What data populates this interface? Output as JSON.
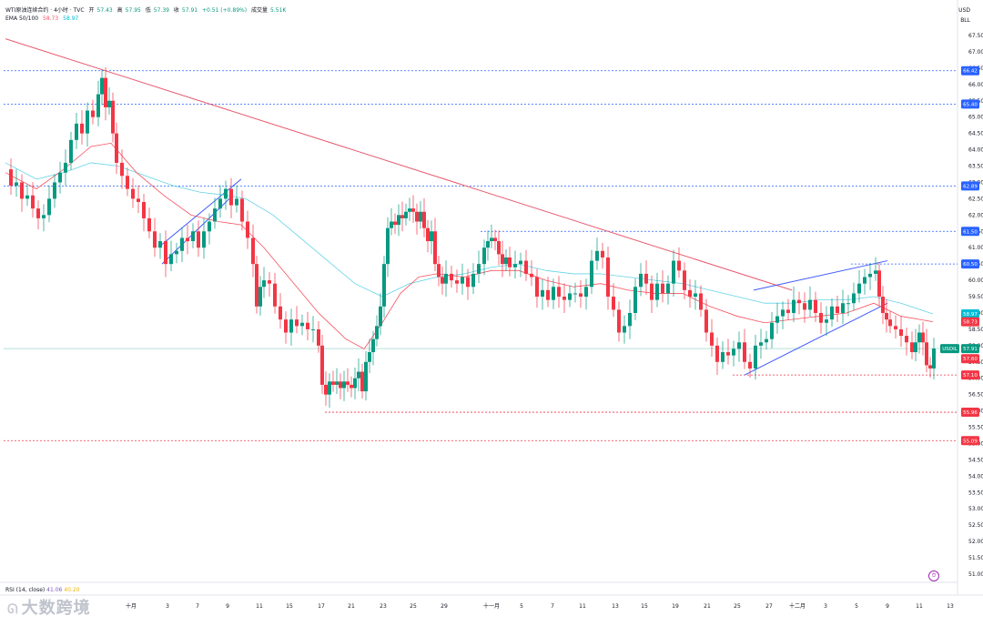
{
  "header": {
    "symbol": "WTI原油连续合约 · 4小时 · TVC",
    "ohlc": [
      {
        "label": "开",
        "value": "57.43"
      },
      {
        "label": "高",
        "value": "57.95"
      },
      {
        "label": "低",
        "value": "57.39"
      },
      {
        "label": "收",
        "value": "57.91"
      },
      {
        "label": "",
        "value": "+0.51 (+0.89%)"
      },
      {
        "label": "成交量",
        "value": "5.51K"
      }
    ],
    "ema_title": "EMA 50/100",
    "ema_a": "58.73",
    "ema_b": "58.97"
  },
  "rsi": {
    "title": "RSI (14, close)",
    "value_a": "41.06",
    "value_b": "40.20"
  },
  "currency": {
    "code": "USD",
    "unit": "BLL"
  },
  "watermark": "大数跨境",
  "alert_icon": "alarm-icon",
  "colors": {
    "up": "#089981",
    "down": "#f23645",
    "ema_red": "#f7525f",
    "ema_cyan": "#63d3e6",
    "trend_red": "#e85a6e",
    "channel_blue": "#3d5afe",
    "level_blue": "#2962ff",
    "level_red": "#f23645",
    "price_line": "#089981",
    "grid": "#f0f3fa"
  },
  "chart_data": {
    "type": "candlestick",
    "title": "WTI原油连续合约 · 4小时 · TVC",
    "ylim": [
      50.5,
      67.9
    ],
    "y_ticks": [
      "67.50",
      "67.00",
      "66.50",
      "66.00",
      "65.50",
      "65.00",
      "64.50",
      "64.00",
      "63.50",
      "63.00",
      "62.50",
      "62.00",
      "61.50",
      "61.00",
      "60.50",
      "60.00",
      "59.50",
      "59.00",
      "58.50",
      "58.00",
      "57.50",
      "57.00",
      "56.50",
      "56.00",
      "55.50",
      "55.00",
      "54.50",
      "54.00",
      "53.50",
      "53.00",
      "52.50",
      "52.00",
      "51.50",
      "51.00"
    ],
    "x_ticks": [
      {
        "label": "十月",
        "t": 144
      },
      {
        "label": "3",
        "t": 184
      },
      {
        "label": "7",
        "t": 217
      },
      {
        "label": "9",
        "t": 250
      },
      {
        "label": "11",
        "t": 285
      },
      {
        "label": "15",
        "t": 318
      },
      {
        "label": "17",
        "t": 353
      },
      {
        "label": "21",
        "t": 386
      },
      {
        "label": "23",
        "t": 421
      },
      {
        "label": "25",
        "t": 454
      },
      {
        "label": "29",
        "t": 488
      },
      {
        "label": "十一月",
        "t": 540
      },
      {
        "label": "5",
        "t": 573
      },
      {
        "label": "7",
        "t": 607
      },
      {
        "label": "11",
        "t": 640
      },
      {
        "label": "13",
        "t": 676
      },
      {
        "label": "15",
        "t": 708
      },
      {
        "label": "19",
        "t": 742
      },
      {
        "label": "21",
        "t": 777
      },
      {
        "label": "25",
        "t": 810
      },
      {
        "label": "27",
        "t": 845
      },
      {
        "label": "十二月",
        "t": 876
      },
      {
        "label": "3",
        "t": 907
      },
      {
        "label": "5",
        "t": 941
      },
      {
        "label": "9",
        "t": 975
      },
      {
        "label": "11",
        "t": 1010
      },
      {
        "label": "13",
        "t": 1044
      }
    ],
    "levels": [
      {
        "value": 66.42,
        "label": "66.42",
        "style": "blue"
      },
      {
        "value": 65.4,
        "label": "65.40",
        "style": "blue"
      },
      {
        "value": 62.89,
        "label": "62.89",
        "style": "blue"
      },
      {
        "value": 61.5,
        "label": "61.50",
        "style": "blue",
        "start": 528
      },
      {
        "value": 60.5,
        "label": "60.50",
        "style": "blue",
        "start": 935
      },
      {
        "value": 57.1,
        "label": "57.10",
        "style": "red",
        "start": 805
      },
      {
        "value": 55.96,
        "label": "55.96",
        "style": "red",
        "start": 357
      },
      {
        "value": 55.09,
        "label": "55.09",
        "style": "red"
      }
    ],
    "price_badges": [
      {
        "value": 58.97,
        "label": "58.97",
        "color": "#00bcd4"
      },
      {
        "value": 58.73,
        "label": "58.73",
        "color": "#f23645"
      },
      {
        "value": 57.91,
        "label": "57.91",
        "color": "#089981",
        "tag": "USOIL"
      },
      {
        "value": 57.6,
        "label": "57.60",
        "color": "#f23645"
      }
    ],
    "close_path": [
      [
        6,
        63.4
      ],
      [
        12,
        62.9
      ],
      [
        18,
        63.0
      ],
      [
        24,
        62.5
      ],
      [
        30,
        62.6
      ],
      [
        36,
        62.2
      ],
      [
        42,
        61.9
      ],
      [
        48,
        62.0
      ],
      [
        54,
        62.5
      ],
      [
        60,
        63.0
      ],
      [
        66,
        63.3
      ],
      [
        72,
        63.6
      ],
      [
        78,
        64.3
      ],
      [
        84,
        64.8
      ],
      [
        90,
        64.5
      ],
      [
        96,
        65.2
      ],
      [
        102,
        65.0
      ],
      [
        108,
        65.7
      ],
      [
        112,
        66.2
      ],
      [
        116,
        65.3
      ],
      [
        120,
        65.5
      ],
      [
        124,
        64.5
      ],
      [
        128,
        63.6
      ],
      [
        134,
        63.2
      ],
      [
        140,
        62.8
      ],
      [
        146,
        62.5
      ],
      [
        152,
        62.4
      ],
      [
        158,
        61.9
      ],
      [
        164,
        61.5
      ],
      [
        170,
        61.0
      ],
      [
        176,
        61.2
      ],
      [
        182,
        60.5
      ],
      [
        188,
        60.8
      ],
      [
        194,
        60.9
      ],
      [
        200,
        61.3
      ],
      [
        206,
        61.2
      ],
      [
        212,
        61.5
      ],
      [
        218,
        61.0
      ],
      [
        224,
        61.5
      ],
      [
        230,
        61.8
      ],
      [
        236,
        62.2
      ],
      [
        242,
        62.5
      ],
      [
        248,
        62.8
      ],
      [
        254,
        62.3
      ],
      [
        260,
        62.5
      ],
      [
        266,
        61.8
      ],
      [
        272,
        61.3
      ],
      [
        278,
        60.5
      ],
      [
        282,
        59.2
      ],
      [
        286,
        59.8
      ],
      [
        290,
        60.0
      ],
      [
        296,
        59.9
      ],
      [
        302,
        59.2
      ],
      [
        308,
        58.8
      ],
      [
        314,
        58.4
      ],
      [
        320,
        58.8
      ],
      [
        326,
        58.6
      ],
      [
        332,
        58.7
      ],
      [
        338,
        58.5
      ],
      [
        344,
        58.5
      ],
      [
        350,
        58.0
      ],
      [
        354,
        56.8
      ],
      [
        358,
        56.5
      ],
      [
        362,
        56.9
      ],
      [
        366,
        56.8
      ],
      [
        370,
        56.9
      ],
      [
        374,
        56.7
      ],
      [
        378,
        56.9
      ],
      [
        382,
        56.8
      ],
      [
        386,
        56.7
      ],
      [
        390,
        57.0
      ],
      [
        394,
        57.2
      ],
      [
        398,
        56.6
      ],
      [
        402,
        57.5
      ],
      [
        406,
        57.8
      ],
      [
        410,
        58.2
      ],
      [
        414,
        58.6
      ],
      [
        418,
        59.2
      ],
      [
        422,
        60.5
      ],
      [
        426,
        61.6
      ],
      [
        430,
        61.8
      ],
      [
        434,
        61.7
      ],
      [
        438,
        62.0
      ],
      [
        442,
        61.9
      ],
      [
        446,
        62.1
      ],
      [
        450,
        62.2
      ],
      [
        454,
        62.1
      ],
      [
        458,
        61.8
      ],
      [
        462,
        62.1
      ],
      [
        466,
        61.6
      ],
      [
        470,
        61.2
      ],
      [
        474,
        61.5
      ],
      [
        478,
        60.5
      ],
      [
        482,
        60.1
      ],
      [
        486,
        59.9
      ],
      [
        490,
        60.2
      ],
      [
        496,
        60.0
      ],
      [
        502,
        59.9
      ],
      [
        508,
        60.1
      ],
      [
        514,
        59.8
      ],
      [
        520,
        60.2
      ],
      [
        526,
        60.5
      ],
      [
        532,
        61.0
      ],
      [
        536,
        61.2
      ],
      [
        540,
        61.3
      ],
      [
        544,
        61.2
      ],
      [
        548,
        60.8
      ],
      [
        552,
        60.5
      ],
      [
        556,
        60.7
      ],
      [
        560,
        60.4
      ],
      [
        566,
        60.5
      ],
      [
        572,
        60.6
      ],
      [
        578,
        60.2
      ],
      [
        584,
        60.1
      ],
      [
        590,
        59.5
      ],
      [
        596,
        59.7
      ],
      [
        602,
        59.4
      ],
      [
        608,
        59.8
      ],
      [
        614,
        59.5
      ],
      [
        620,
        59.4
      ],
      [
        626,
        59.6
      ],
      [
        632,
        59.6
      ],
      [
        638,
        59.5
      ],
      [
        644,
        59.8
      ],
      [
        650,
        60.6
      ],
      [
        656,
        60.9
      ],
      [
        662,
        60.7
      ],
      [
        668,
        59.5
      ],
      [
        674,
        59.1
      ],
      [
        680,
        58.4
      ],
      [
        686,
        58.6
      ],
      [
        692,
        59.0
      ],
      [
        698,
        59.8
      ],
      [
        704,
        60.2
      ],
      [
        710,
        59.9
      ],
      [
        716,
        59.4
      ],
      [
        722,
        59.9
      ],
      [
        728,
        59.6
      ],
      [
        734,
        59.9
      ],
      [
        740,
        60.6
      ],
      [
        746,
        60.3
      ],
      [
        752,
        59.7
      ],
      [
        758,
        59.5
      ],
      [
        764,
        59.6
      ],
      [
        770,
        59.1
      ],
      [
        776,
        58.4
      ],
      [
        782,
        58.0
      ],
      [
        788,
        57.5
      ],
      [
        794,
        57.8
      ],
      [
        800,
        57.7
      ],
      [
        806,
        57.9
      ],
      [
        812,
        58.1
      ],
      [
        818,
        57.5
      ],
      [
        824,
        57.3
      ],
      [
        830,
        58.0
      ],
      [
        836,
        58.1
      ],
      [
        842,
        58.2
      ],
      [
        848,
        58.7
      ],
      [
        854,
        58.9
      ],
      [
        860,
        59.1
      ],
      [
        866,
        59.0
      ],
      [
        872,
        59.4
      ],
      [
        878,
        59.3
      ],
      [
        884,
        59.1
      ],
      [
        890,
        59.4
      ],
      [
        896,
        59.0
      ],
      [
        902,
        58.7
      ],
      [
        908,
        58.8
      ],
      [
        914,
        59.2
      ],
      [
        920,
        59.0
      ],
      [
        926,
        59.3
      ],
      [
        932,
        59.3
      ],
      [
        938,
        59.6
      ],
      [
        944,
        59.9
      ],
      [
        950,
        60.1
      ],
      [
        956,
        60.2
      ],
      [
        962,
        60.3
      ],
      [
        966,
        59.5
      ],
      [
        970,
        59.0
      ],
      [
        974,
        58.8
      ],
      [
        978,
        58.6
      ],
      [
        984,
        58.5
      ],
      [
        990,
        58.3
      ],
      [
        996,
        58.1
      ],
      [
        1002,
        57.8
      ],
      [
        1006,
        58.1
      ],
      [
        1010,
        58.4
      ],
      [
        1014,
        58.1
      ],
      [
        1018,
        57.4
      ],
      [
        1022,
        57.3
      ],
      [
        1026,
        57.91
      ]
    ],
    "ema_red": [
      [
        6,
        63.3
      ],
      [
        40,
        62.8
      ],
      [
        70,
        63.4
      ],
      [
        100,
        64.1
      ],
      [
        122,
        64.2
      ],
      [
        150,
        63.3
      ],
      [
        180,
        62.6
      ],
      [
        210,
        62.0
      ],
      [
        240,
        61.8
      ],
      [
        265,
        61.7
      ],
      [
        290,
        61.0
      ],
      [
        320,
        60.0
      ],
      [
        350,
        59.0
      ],
      [
        380,
        58.2
      ],
      [
        400,
        57.9
      ],
      [
        420,
        58.7
      ],
      [
        440,
        59.6
      ],
      [
        460,
        60.1
      ],
      [
        480,
        60.2
      ],
      [
        510,
        60.1
      ],
      [
        540,
        60.3
      ],
      [
        570,
        60.3
      ],
      [
        600,
        60.0
      ],
      [
        630,
        59.8
      ],
      [
        660,
        59.9
      ],
      [
        690,
        59.7
      ],
      [
        720,
        59.6
      ],
      [
        750,
        59.6
      ],
      [
        780,
        59.2
      ],
      [
        810,
        58.9
      ],
      [
        840,
        58.7
      ],
      [
        870,
        58.8
      ],
      [
        900,
        58.9
      ],
      [
        930,
        59.0
      ],
      [
        960,
        59.3
      ],
      [
        990,
        58.9
      ],
      [
        1025,
        58.73
      ]
    ],
    "ema_cyan": [
      [
        6,
        63.6
      ],
      [
        40,
        63.1
      ],
      [
        70,
        63.3
      ],
      [
        100,
        63.6
      ],
      [
        130,
        63.5
      ],
      [
        160,
        63.2
      ],
      [
        190,
        62.9
      ],
      [
        220,
        62.7
      ],
      [
        250,
        62.6
      ],
      [
        270,
        62.5
      ],
      [
        300,
        62.0
      ],
      [
        330,
        61.3
      ],
      [
        360,
        60.6
      ],
      [
        390,
        59.9
      ],
      [
        420,
        59.5
      ],
      [
        450,
        59.9
      ],
      [
        480,
        60.1
      ],
      [
        510,
        60.2
      ],
      [
        540,
        60.4
      ],
      [
        570,
        60.5
      ],
      [
        600,
        60.3
      ],
      [
        630,
        60.2
      ],
      [
        660,
        60.2
      ],
      [
        690,
        60.1
      ],
      [
        720,
        60.0
      ],
      [
        750,
        59.9
      ],
      [
        780,
        59.7
      ],
      [
        810,
        59.5
      ],
      [
        840,
        59.3
      ],
      [
        870,
        59.3
      ],
      [
        900,
        59.4
      ],
      [
        930,
        59.4
      ],
      [
        960,
        59.5
      ],
      [
        990,
        59.3
      ],
      [
        1025,
        58.97
      ]
    ],
    "trend_lines": [
      {
        "color": "red",
        "points": [
          [
            6,
            67.4
          ],
          [
            870,
            59.7
          ]
        ]
      },
      {
        "color": "blue",
        "points": [
          [
            178,
            60.5
          ],
          [
            252,
            62.5
          ]
        ]
      },
      {
        "color": "blue",
        "points": [
          [
            178,
            61.1
          ],
          [
            265,
            63.1
          ]
        ]
      },
      {
        "color": "blue",
        "points": [
          [
            818,
            57.1
          ],
          [
            975,
            59.3
          ]
        ]
      },
      {
        "color": "blue",
        "points": [
          [
            828,
            59.7
          ],
          [
            975,
            60.6
          ]
        ]
      }
    ]
  }
}
